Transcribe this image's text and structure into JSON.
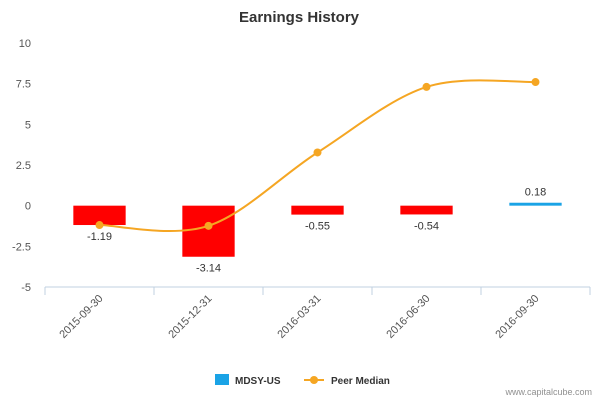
{
  "chart_data": {
    "type": "bar",
    "title": "Earnings History",
    "categories": [
      "2015-09-30",
      "2015-12-31",
      "2016-03-31",
      "2016-06-30",
      "2016-09-30"
    ],
    "series": [
      {
        "name": "MDSY-US",
        "type": "bar",
        "values": [
          -1.19,
          -3.14,
          -0.55,
          -0.54,
          0.18
        ],
        "colors": [
          "#ff0000",
          "#ff0000",
          "#ff0000",
          "#ff0000",
          "#1aa3e6"
        ]
      },
      {
        "name": "Peer Median",
        "type": "line",
        "values": [
          -1.19,
          -1.24,
          3.27,
          7.3,
          7.6
        ],
        "color": "#f5a623"
      }
    ],
    "data_labels": [
      "-1.19",
      "-3.14",
      "-0.55",
      "-0.54",
      "0.18"
    ],
    "yticks": [
      10,
      7.5,
      5,
      2.5,
      0,
      -2.5,
      -5
    ],
    "ytick_labels": [
      "10",
      "7.5",
      "5",
      "2.5",
      "0",
      "-2.5",
      "-5"
    ],
    "ylim": [
      -5,
      10
    ],
    "grid": false,
    "legend_position": "bottom-center",
    "xlabel": "",
    "ylabel": ""
  },
  "credit": "www.capitalcube.com"
}
